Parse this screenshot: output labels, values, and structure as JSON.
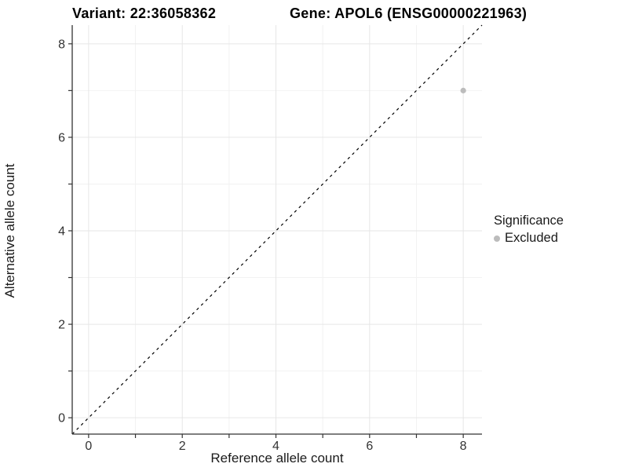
{
  "chart_data": {
    "type": "scatter",
    "title_left": "Variant: 22:36058362",
    "title_right": "Gene: APOL6 (ENSG00000221963)",
    "xlabel": "Reference allele count",
    "ylabel": "Alternative allele count",
    "xlim": [
      -0.35,
      8.4
    ],
    "ylim": [
      -0.35,
      8.4
    ],
    "major_ticks": [
      0,
      2,
      4,
      6,
      8
    ],
    "minor_ticks": [
      1,
      3,
      5,
      7
    ],
    "x_tick_labels": [
      "0",
      "2",
      "4",
      "6",
      "8"
    ],
    "y_tick_labels": [
      "0",
      "2",
      "4",
      "6",
      "8"
    ],
    "grid": true,
    "points": [
      {
        "x": 8,
        "y": 7,
        "significance": "Excluded"
      }
    ],
    "abline": {
      "slope": 1,
      "intercept": 0,
      "linetype": "dashed",
      "color": "#000000"
    },
    "legend": {
      "title": "Significance",
      "position": "right",
      "items": [
        {
          "label": "Excluded",
          "color": "#bcbcbc"
        }
      ]
    },
    "colors": {
      "point": "#bcbcbc",
      "axis_line": "#333333",
      "tick_mark": "#333333",
      "tick_label": "#333333",
      "grid_major": "#e6e6e6",
      "grid_minor": "#f2f2f2",
      "background": "#ffffff"
    }
  }
}
